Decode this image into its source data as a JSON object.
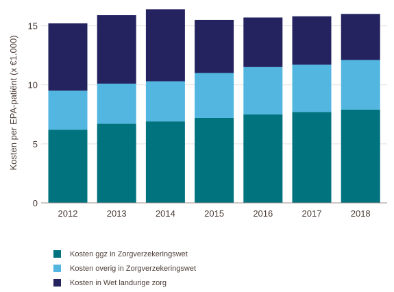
{
  "chart_data": {
    "type": "bar",
    "stacked": true,
    "categories": [
      "2012",
      "2013",
      "2014",
      "2015",
      "2016",
      "2017",
      "2018"
    ],
    "series": [
      {
        "name": "Kosten ggz in Zorgverzekeringswet",
        "color": "#00737f",
        "values": [
          6.2,
          6.7,
          6.9,
          7.2,
          7.5,
          7.7,
          7.9
        ]
      },
      {
        "name": "Kosten overig in Zorgverzekeringswet",
        "color": "#52b6e0",
        "values": [
          3.3,
          3.4,
          3.4,
          3.8,
          4.0,
          4.0,
          4.2
        ]
      },
      {
        "name": "Kosten in Wet landurige zorg",
        "color": "#25235f",
        "values": [
          5.7,
          5.8,
          6.1,
          4.5,
          4.2,
          4.1,
          3.9
        ]
      }
    ],
    "ylabel": "Kosten per EPA-patiënt (x €1.000)",
    "xlabel": "",
    "title": "",
    "ylim": [
      0,
      16.6
    ],
    "yticks": [
      0,
      5,
      10,
      15
    ],
    "grid": true,
    "legend_position": "bottom-left"
  }
}
